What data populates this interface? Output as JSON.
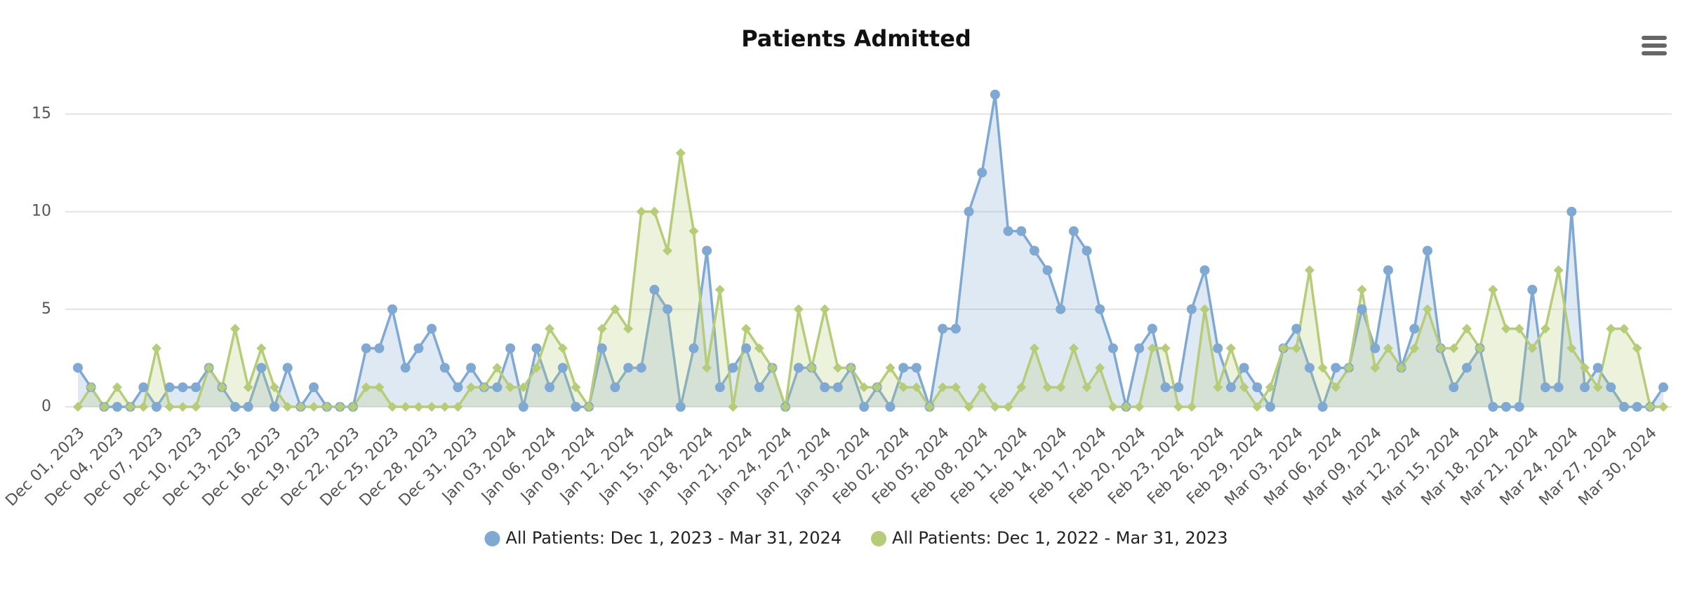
{
  "chart_data": {
    "type": "line",
    "title": "Patients Admitted",
    "categories": [
      "Dec 01, 2023",
      null,
      null,
      "Dec 04, 2023",
      null,
      null,
      "Dec 07, 2023",
      null,
      null,
      "Dec 10, 2023",
      null,
      null,
      "Dec 13, 2023",
      null,
      null,
      "Dec 16, 2023",
      null,
      null,
      "Dec 19, 2023",
      null,
      null,
      "Dec 22, 2023",
      null,
      null,
      "Dec 25, 2023",
      null,
      null,
      "Dec 28, 2023",
      null,
      null,
      "Dec 31, 2023",
      null,
      null,
      "Jan 03, 2024",
      null,
      null,
      "Jan 06, 2024",
      null,
      null,
      "Jan 09, 2024",
      null,
      null,
      "Jan 12, 2024",
      null,
      null,
      "Jan 15, 2024",
      null,
      null,
      "Jan 18, 2024",
      null,
      null,
      "Jan 21, 2024",
      null,
      null,
      "Jan 24, 2024",
      null,
      null,
      "Jan 27, 2024",
      null,
      null,
      "Jan 30, 2024",
      null,
      null,
      "Feb 02, 2024",
      null,
      null,
      "Feb 05, 2024",
      null,
      null,
      "Feb 08, 2024",
      null,
      null,
      "Feb 11, 2024",
      null,
      null,
      "Feb 14, 2024",
      null,
      null,
      "Feb 17, 2024",
      null,
      null,
      "Feb 20, 2024",
      null,
      null,
      "Feb 23, 2024",
      null,
      null,
      "Feb 26, 2024",
      null,
      null,
      "Feb 29, 2024",
      null,
      null,
      "Mar 03, 2024",
      null,
      null,
      "Mar 06, 2024",
      null,
      null,
      "Mar 09, 2024",
      null,
      null,
      "Mar 12, 2024",
      null,
      null,
      "Mar 15, 2024",
      null,
      null,
      "Mar 18, 2024",
      null,
      null,
      "Mar 21, 2024",
      null,
      null,
      "Mar 24, 2024",
      null,
      null,
      "Mar 27, 2024",
      null,
      null,
      "Mar 30, 2024",
      null
    ],
    "series": [
      {
        "name": "All Patients: Dec 1, 2023 - Mar 31, 2024",
        "color": "#7fa8d2",
        "marker": "circle",
        "values": [
          2,
          1,
          0,
          0,
          0,
          1,
          0,
          1,
          1,
          1,
          2,
          1,
          0,
          0,
          2,
          0,
          2,
          0,
          1,
          0,
          0,
          0,
          3,
          3,
          5,
          2,
          3,
          4,
          2,
          1,
          2,
          1,
          1,
          3,
          0,
          3,
          1,
          2,
          0,
          0,
          3,
          1,
          2,
          2,
          6,
          5,
          0,
          3,
          8,
          1,
          2,
          3,
          1,
          2,
          0,
          2,
          2,
          1,
          1,
          2,
          0,
          1,
          0,
          2,
          2,
          0,
          4,
          4,
          10,
          12,
          16,
          9,
          9,
          8,
          7,
          5,
          9,
          8,
          5,
          3,
          0,
          3,
          4,
          1,
          1,
          5,
          7,
          3,
          1,
          2,
          1,
          0,
          3,
          4,
          2,
          0,
          2,
          2,
          5,
          3,
          7,
          2,
          4,
          8,
          3,
          1,
          2,
          3,
          0,
          0,
          0,
          6,
          1,
          1,
          10,
          1,
          2,
          1,
          0,
          0,
          0,
          1
        ]
      },
      {
        "name": "All Patients: Dec 1, 2022 - Mar 31, 2023",
        "color": "#b6cc79",
        "marker": "diamond",
        "values": [
          0,
          1,
          0,
          1,
          0,
          0,
          3,
          0,
          0,
          0,
          2,
          1,
          4,
          1,
          3,
          1,
          0,
          0,
          0,
          0,
          0,
          0,
          1,
          1,
          0,
          0,
          0,
          0,
          0,
          0,
          1,
          1,
          2,
          1,
          1,
          2,
          4,
          3,
          1,
          0,
          4,
          5,
          4,
          10,
          10,
          8,
          13,
          9,
          2,
          6,
          0,
          4,
          3,
          2,
          0,
          5,
          2,
          5,
          2,
          2,
          1,
          1,
          2,
          1,
          1,
          0,
          1,
          1,
          0,
          1,
          0,
          0,
          1,
          3,
          1,
          1,
          3,
          1,
          2,
          0,
          0,
          0,
          3,
          3,
          0,
          0,
          5,
          1,
          3,
          1,
          0,
          1,
          3,
          3,
          7,
          2,
          1,
          2,
          6,
          2,
          3,
          2,
          3,
          5,
          3,
          3,
          4,
          3,
          6,
          4,
          4,
          3,
          4,
          7,
          3,
          2,
          1,
          4,
          4,
          3,
          0,
          0
        ]
      }
    ],
    "ylim": [
      0,
      17.5
    ],
    "yticks": [
      0,
      5,
      10,
      15
    ],
    "grid": true
  }
}
